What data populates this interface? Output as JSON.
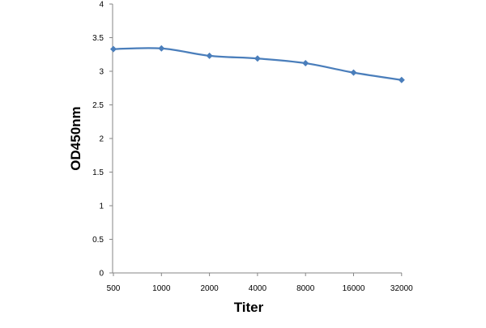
{
  "chart_data": {
    "type": "line",
    "title": "",
    "xlabel": "Titer",
    "ylabel": "OD450nm",
    "categories": [
      "500",
      "1000",
      "2000",
      "4000",
      "8000",
      "16000",
      "32000"
    ],
    "series": [
      {
        "values": [
          3.33,
          3.34,
          3.23,
          3.19,
          3.12,
          2.98,
          2.87
        ],
        "color": "#4a7ebb",
        "marker": "diamond"
      }
    ],
    "ylim": [
      0,
      4
    ],
    "yticks": [
      "0",
      "0.5",
      "1",
      "1.5",
      "2",
      "2.5",
      "3",
      "3.5",
      "4"
    ],
    "grid": false,
    "legend": "none"
  }
}
